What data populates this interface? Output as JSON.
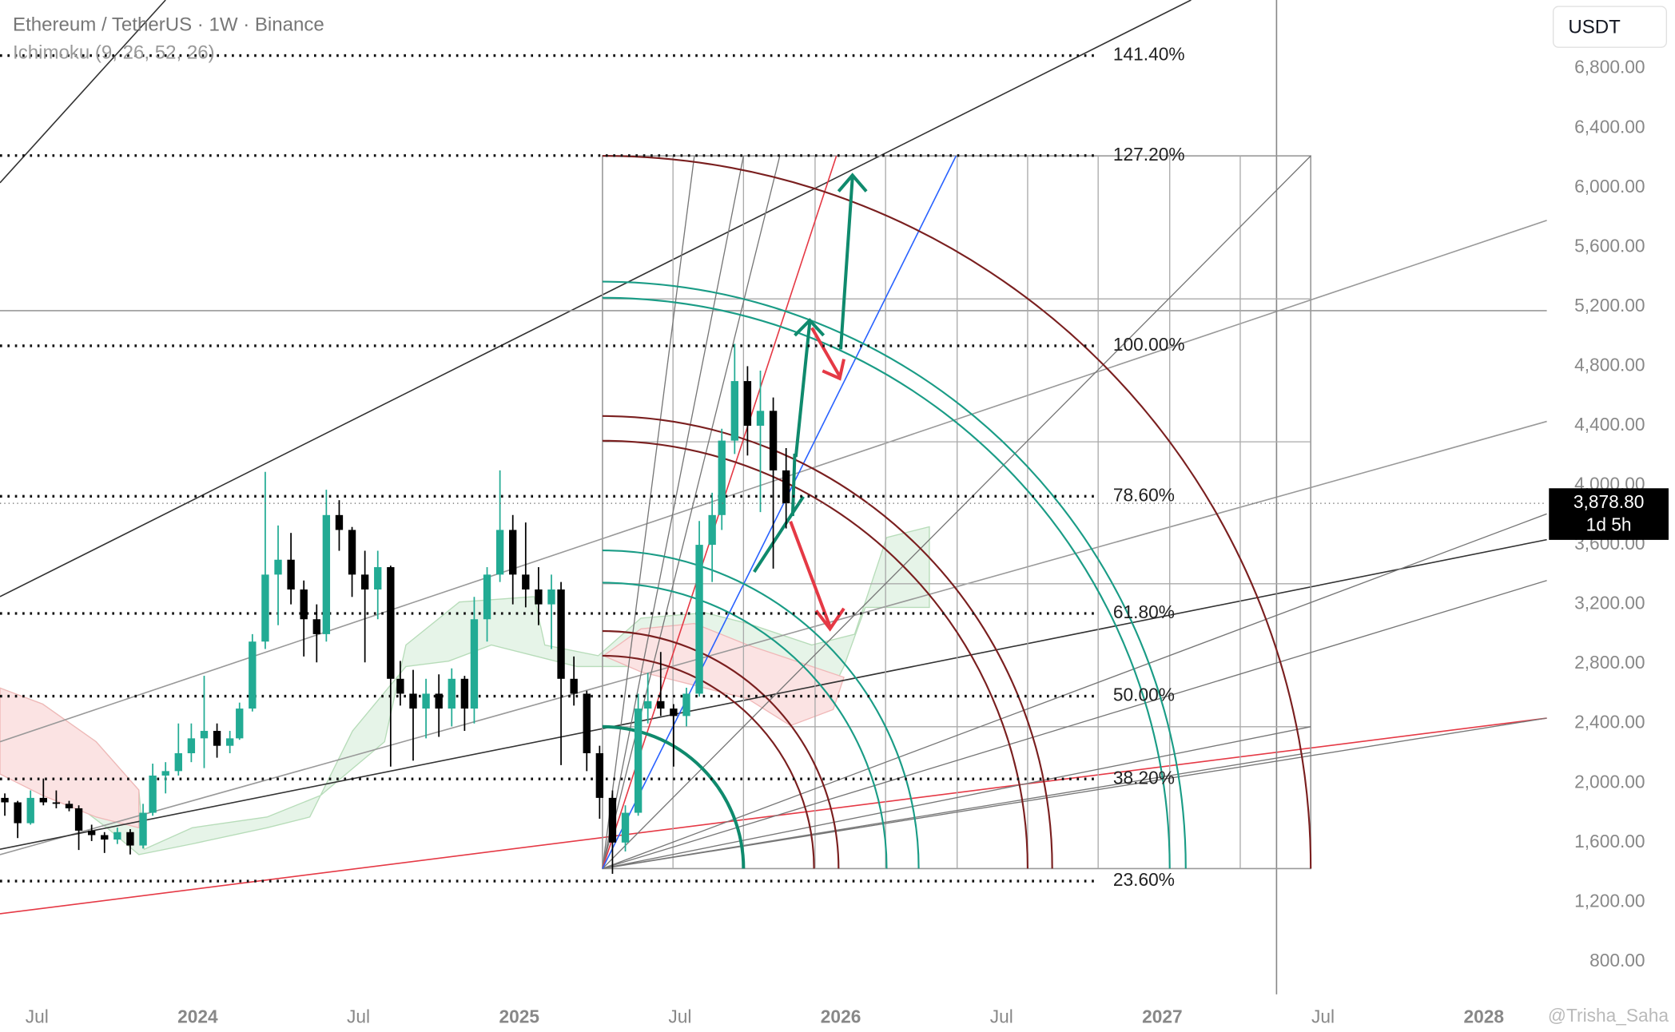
{
  "chart_data": {
    "type": "candlestick",
    "title": "Ethereum / TetherUS · 1W · Binance",
    "indicator": "Ichimoku (9, 26, 52, 26)",
    "currency": "USDT",
    "watermark": "@Trisha_Saha",
    "up_color": "#22ab94",
    "down_color": "#000000",
    "xlim": [
      2023.385,
      2028.196
    ],
    "xticks": [
      {
        "value": 2023.5,
        "label": "Jul"
      },
      2024,
      {
        "value": 2024.5,
        "label": "Jul"
      },
      2025,
      {
        "value": 2025.5,
        "label": "Jul"
      },
      2026,
      {
        "value": 2026.5,
        "label": "Jul"
      },
      2027,
      {
        "value": 2027.5,
        "label": "Jul"
      },
      2028
    ],
    "ylim": [
      580,
      7260
    ],
    "yticks": [
      {
        "value": 800,
        "label": "800.00"
      },
      {
        "value": 1200,
        "label": "1,200.00"
      },
      {
        "value": 1600,
        "label": "1,600.00"
      },
      {
        "value": 2000,
        "label": "2,000.00"
      },
      {
        "value": 2400,
        "label": "2,400.00"
      },
      {
        "value": 2800,
        "label": "2,800.00"
      },
      {
        "value": 3200,
        "label": "3,200.00"
      },
      {
        "value": 3600,
        "label": "3,600.00"
      },
      {
        "value": 4000,
        "label": "4,000.00"
      },
      {
        "value": 4400,
        "label": "4,400.00"
      },
      {
        "value": 4800,
        "label": "4,800.00"
      },
      {
        "value": 5200,
        "label": "5,200.00"
      },
      {
        "value": 5600,
        "label": "5,600.00"
      },
      {
        "value": 6000,
        "label": "6,000.00"
      },
      {
        "value": 6400,
        "label": "6,400.00"
      },
      {
        "value": 6800,
        "label": "6,800.00"
      }
    ],
    "last_price": {
      "value": 3878.8,
      "label": "3,878.80"
    },
    "countdown": "1d 5h",
    "fib_levels": [
      {
        "label": "141.40%",
        "price": 6887
      },
      {
        "label": "127.20%",
        "price": 6215
      },
      {
        "label": "100.00%",
        "price": 4937
      },
      {
        "label": "78.60%",
        "price": 3926
      },
      {
        "label": "61.80%",
        "price": 3139
      },
      {
        "label": "50.00%",
        "price": 2583
      },
      {
        "label": "38.20%",
        "price": 2027
      },
      {
        "label": "23.60%",
        "price": 1341
      }
    ],
    "x": [
      2023.4,
      2023.44,
      2023.48,
      2023.52,
      2023.56,
      2023.6,
      2023.63,
      2023.67,
      2023.71,
      2023.75,
      2023.79,
      2023.83,
      2023.86,
      2023.9,
      2023.94,
      2023.98,
      2024.02,
      2024.06,
      2024.1,
      2024.13,
      2024.17,
      2024.21,
      2024.25,
      2024.29,
      2024.33,
      2024.37,
      2024.4,
      2024.44,
      2024.48,
      2024.52,
      2024.56,
      2024.6,
      2024.63,
      2024.67,
      2024.71,
      2024.75,
      2024.79,
      2024.83,
      2024.86,
      2024.9,
      2024.94,
      2024.98,
      2025.02,
      2025.06,
      2025.1,
      2025.13,
      2025.17,
      2025.21,
      2025.25,
      2025.29,
      2025.33,
      2025.37,
      2025.4,
      2025.44,
      2025.48,
      2025.52,
      2025.56,
      2025.6,
      2025.63,
      2025.67,
      2025.71,
      2025.75,
      2025.79,
      2025.83
    ],
    "open": [
      1900,
      1870,
      1730,
      1900,
      1870,
      1860,
      1830,
      1680,
      1650,
      1620,
      1670,
      1580,
      1800,
      2050,
      2080,
      2200,
      2300,
      2350,
      2250,
      2300,
      2500,
      2950,
      3400,
      3500,
      3300,
      3100,
      3000,
      3800,
      3700,
      3400,
      3300,
      3450,
      2700,
      2600,
      2500,
      2600,
      2500,
      2700,
      2500,
      3100,
      3400,
      3700,
      3400,
      3300,
      3200,
      3300,
      2700,
      2600,
      2200,
      1900,
      1600,
      1800,
      2500,
      2550,
      2500,
      2450,
      2600,
      3600,
      3800,
      4300,
      4700,
      4400,
      4500,
      4100
    ],
    "high": [
      1930,
      1880,
      1950,
      2030,
      1950,
      1880,
      1850,
      1720,
      1670,
      1700,
      1690,
      1860,
      2130,
      2140,
      2400,
      2400,
      2720,
      2400,
      2350,
      2540,
      3000,
      4090,
      3730,
      3680,
      3360,
      3200,
      3970,
      3900,
      3720,
      3560,
      3560,
      3460,
      2820,
      2760,
      2700,
      2730,
      2770,
      2720,
      3250,
      3450,
      4100,
      3800,
      3750,
      3450,
      3400,
      3350,
      2850,
      2620,
      2250,
      1950,
      1850,
      2600,
      2740,
      2880,
      2530,
      2640,
      3760,
      3950,
      4380,
      4950,
      4800,
      4770,
      4590,
      4250
    ],
    "low": [
      1780,
      1630,
      1720,
      1850,
      1830,
      1810,
      1550,
      1610,
      1530,
      1590,
      1520,
      1560,
      1780,
      1930,
      2050,
      2140,
      2100,
      2170,
      2200,
      2290,
      2480,
      2900,
      3060,
      3200,
      2850,
      2810,
      2950,
      3560,
      3250,
      2810,
      3100,
      2110,
      2520,
      2150,
      2300,
      2310,
      2380,
      2350,
      2400,
      2950,
      3350,
      3200,
      3180,
      3060,
      2900,
      2120,
      2520,
      2080,
      1760,
      1390,
      1540,
      1780,
      2400,
      2450,
      2110,
      2380,
      2580,
      3350,
      3700,
      4210,
      4200,
      3820,
      3440,
      3710
    ],
    "close": [
      1870,
      1730,
      1900,
      1870,
      1860,
      1830,
      1680,
      1650,
      1620,
      1670,
      1580,
      1800,
      2050,
      2080,
      2200,
      2300,
      2350,
      2250,
      2300,
      2500,
      2950,
      3400,
      3500,
      3300,
      3100,
      3000,
      3800,
      3700,
      3400,
      3300,
      3450,
      2700,
      2600,
      2500,
      2600,
      2500,
      2700,
      2500,
      3100,
      3400,
      3700,
      3400,
      3300,
      3200,
      3300,
      2700,
      2600,
      2200,
      1900,
      1600,
      1800,
      2500,
      2550,
      2500,
      2450,
      2600,
      3600,
      3800,
      4300,
      4700,
      4400,
      4500,
      4100,
      3878.8
    ]
  }
}
